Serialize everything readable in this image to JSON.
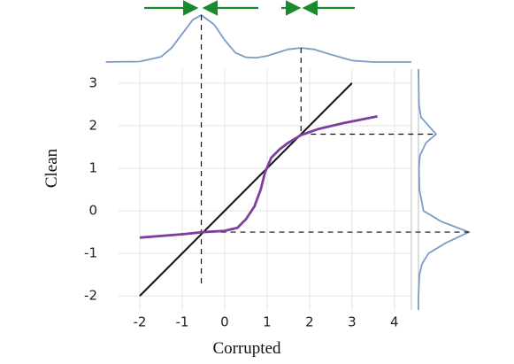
{
  "chart_data": {
    "type": "line",
    "xlabel": "Corrupted",
    "ylabel": "Clean",
    "xlim": [
      -2.5,
      4.4
    ],
    "ylim": [
      -2.33,
      3.33
    ],
    "xticks": [
      -2,
      -1,
      0,
      1,
      2,
      3,
      4
    ],
    "yticks": [
      -2,
      -1,
      0,
      1,
      2,
      3
    ],
    "grid": true,
    "series": [
      {
        "color": "#111111",
        "x": [
          -2,
          3
        ],
        "values": [
          -2,
          3
        ]
      },
      {
        "color": "#7b3fa0",
        "x": [
          -2,
          -1,
          -0.5,
          0,
          0.3,
          0.5,
          0.7,
          0.85,
          0.95,
          1.1,
          1.3,
          1.5,
          1.8,
          2.2,
          2.8,
          3.6
        ],
        "values": [
          -0.63,
          -0.55,
          -0.5,
          -0.47,
          -0.4,
          -0.2,
          0.1,
          0.5,
          0.9,
          1.25,
          1.45,
          1.6,
          1.78,
          1.92,
          2.06,
          2.22
        ]
      }
    ],
    "marginal_x": {
      "color": "#7b9cc8",
      "x": [
        -2.8,
        -2,
        -1.5,
        -1.25,
        -1,
        -0.75,
        -0.55,
        -0.25,
        0,
        0.25,
        0.5,
        0.75,
        1,
        1.25,
        1.5,
        1.8,
        2.1,
        2.5,
        3,
        3.5,
        4,
        4.4
      ],
      "values": [
        0,
        0.01,
        0.11,
        0.3,
        0.6,
        0.9,
        1,
        0.8,
        0.47,
        0.2,
        0.1,
        0.09,
        0.13,
        0.2,
        0.27,
        0.3,
        0.27,
        0.16,
        0.03,
        0,
        0,
        0
      ]
    },
    "marginal_y": {
      "color": "#7b9cc8",
      "y": [
        3.33,
        2.5,
        2.2,
        2,
        1.8,
        1.6,
        1.3,
        1,
        0.5,
        0,
        -0.25,
        -0.5,
        -0.75,
        -1,
        -1.25,
        -1.5,
        -2,
        -2.33
      ],
      "values": [
        0,
        0.01,
        0.05,
        0.2,
        0.35,
        0.15,
        0.03,
        0.01,
        0.02,
        0.1,
        0.45,
        1,
        0.55,
        0.2,
        0.07,
        0.02,
        0,
        0
      ]
    },
    "guides": [
      {
        "x": -0.55,
        "y": -0.5,
        "ymin": -1.75
      },
      {
        "x": 1.8,
        "y": 1.8,
        "ymin": 1.8
      }
    ]
  }
}
